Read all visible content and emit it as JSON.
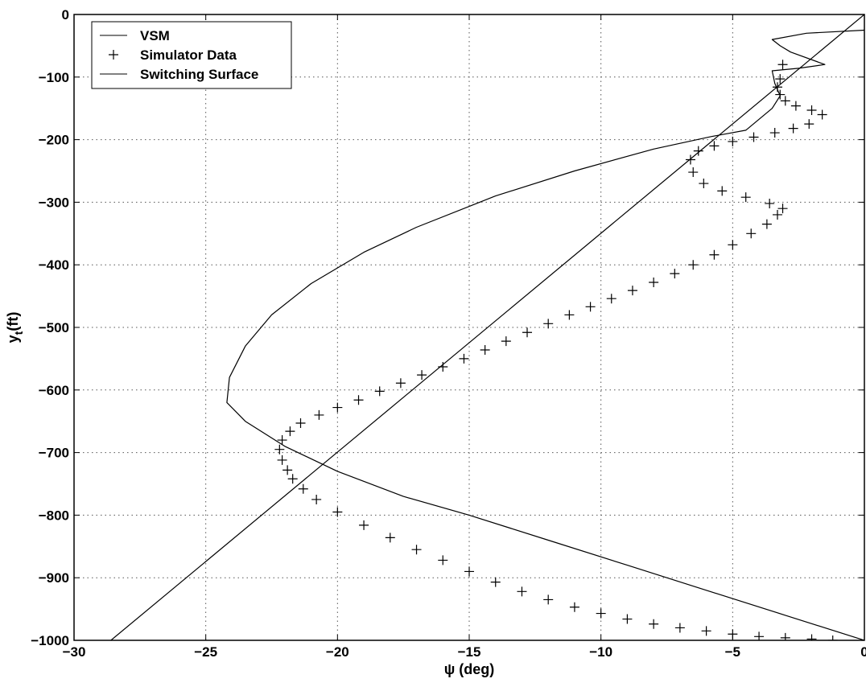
{
  "chart_data": {
    "type": "line",
    "title": "",
    "xlabel": "ψ (deg)",
    "ylabel_main": "y",
    "ylabel_sub": "t",
    "ylabel_unit": "(ft)",
    "xlim": [
      -30,
      0
    ],
    "ylim": [
      -1000,
      0
    ],
    "xticks": [
      -30,
      -25,
      -20,
      -15,
      -10,
      -5,
      0
    ],
    "yticks": [
      0,
      -100,
      -200,
      -300,
      -400,
      -500,
      -600,
      -700,
      -800,
      -900,
      -1000
    ],
    "xtick_labels": [
      "−30",
      "−25",
      "−20",
      "−15",
      "−10",
      "−5",
      "0"
    ],
    "ytick_labels": [
      "0",
      "−100",
      "−200",
      "−300",
      "−400",
      "−500",
      "−600",
      "−700",
      "−800",
      "−900",
      "−1000"
    ],
    "grid": true,
    "grid_style": "dotted",
    "legend_position": "top-left",
    "series": [
      {
        "name": "VSM",
        "style": "line",
        "color": "#000000",
        "x": [
          0,
          -3,
          -6,
          -9,
          -12,
          -15,
          -17.5,
          -20,
          -22,
          -23.5,
          -24.2,
          -24.1,
          -23.5,
          -22.5,
          -21,
          -19,
          -17,
          -14,
          -11,
          -8,
          -5.8,
          -4.5,
          -3.5,
          -3.2,
          -3.4,
          -3.5,
          -2.5,
          -1.5,
          -2.8,
          -3.2,
          -3.5,
          -2.2,
          0
        ],
        "y": [
          -1000,
          -960,
          -920,
          -880,
          -840,
          -800,
          -770,
          -730,
          -690,
          -650,
          -620,
          -580,
          -530,
          -480,
          -430,
          -380,
          -340,
          -290,
          -250,
          -215,
          -195,
          -185,
          -150,
          -130,
          -110,
          -90,
          -86,
          -80,
          -60,
          -50,
          -40,
          -30,
          -25
        ]
      },
      {
        "name": "Simulator Data",
        "style": "marker-plus",
        "color": "#000000",
        "x": [
          -1.2,
          -2,
          -3,
          -4,
          -5,
          -6,
          -7,
          -8,
          -9,
          -10,
          -11,
          -12,
          -13,
          -14,
          -15,
          -16,
          -17,
          -18,
          -19,
          -20,
          -20.8,
          -21.3,
          -21.7,
          -21.9,
          -22.1,
          -22.2,
          -22.1,
          -21.8,
          -21.4,
          -20.7,
          -20,
          -19.2,
          -18.4,
          -17.6,
          -16.8,
          -16,
          -15.2,
          -14.4,
          -13.6,
          -12.8,
          -12,
          -11.2,
          -10.4,
          -9.6,
          -8.8,
          -8,
          -7.2,
          -6.5,
          -5.7,
          -5,
          -4.3,
          -3.7,
          -3.3,
          -3.1,
          -3.6,
          -4.5,
          -5.4,
          -6.1,
          -6.5,
          -6.6,
          -6.3,
          -5.7,
          -5,
          -4.2,
          -3.4,
          -2.7,
          -2.1,
          -1.6,
          -2,
          -2.6,
          -3,
          -3.2,
          -3.3,
          -3.2,
          -3.1
        ],
        "y": [
          -1000,
          -998,
          -996,
          -994,
          -990,
          -985,
          -980,
          -974,
          -966,
          -957,
          -947,
          -935,
          -922,
          -907,
          -890,
          -872,
          -855,
          -836,
          -816,
          -795,
          -775,
          -758,
          -742,
          -728,
          -712,
          -695,
          -680,
          -666,
          -653,
          -640,
          -628,
          -616,
          -602,
          -589,
          -576,
          -563,
          -550,
          -536,
          -522,
          -508,
          -494,
          -480,
          -467,
          -454,
          -441,
          -428,
          -414,
          -400,
          -384,
          -368,
          -350,
          -335,
          -320,
          -310,
          -302,
          -292,
          -282,
          -270,
          -252,
          -232,
          -218,
          -210,
          -203,
          -196,
          -189,
          -182,
          -175,
          -160,
          -153,
          -146,
          -138,
          -128,
          -116,
          -103,
          -80
        ]
      },
      {
        "name": "Switching Surface",
        "style": "line",
        "color": "#000000",
        "x": [
          -28.6,
          0
        ],
        "y": [
          -1000,
          0
        ]
      }
    ]
  }
}
